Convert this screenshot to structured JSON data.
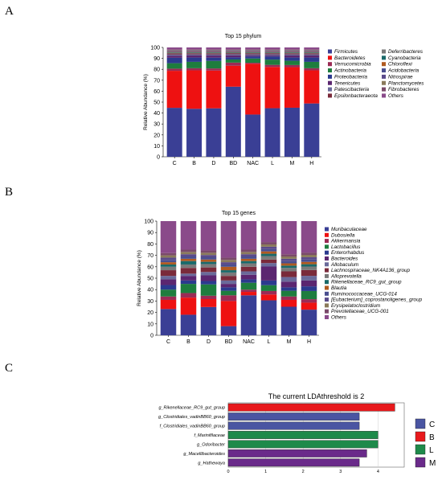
{
  "panels": {
    "a": "A",
    "b": "B",
    "c": "C"
  },
  "chart_data": [
    {
      "type": "bar",
      "stacked": true,
      "title": "Top 15 phylum",
      "ylabel": "Relative Abundance (%)",
      "ylim": [
        0,
        100
      ],
      "yticks": [
        0,
        10,
        20,
        30,
        40,
        50,
        60,
        70,
        80,
        90,
        100
      ],
      "categories": [
        "C",
        "B",
        "D",
        "BD",
        "NAC",
        "L",
        "M",
        "H"
      ],
      "legend_columns": 2,
      "series": [
        {
          "name": "Firmicutes",
          "color": "#3a3f95",
          "values": [
            45,
            45,
            45,
            67,
            40,
            46,
            46,
            50
          ]
        },
        {
          "name": "Bacteroidetes",
          "color": "#ee1111",
          "values": [
            34,
            36,
            35,
            20,
            48,
            39,
            38,
            31
          ]
        },
        {
          "name": "Verrucomicrobia",
          "color": "#9b2b55",
          "values": [
            2,
            2,
            2,
            3,
            1,
            2,
            2,
            2
          ]
        },
        {
          "name": "Actinobacteria",
          "color": "#1e7d3e",
          "values": [
            5,
            6,
            7,
            3,
            4,
            5,
            4,
            6
          ]
        },
        {
          "name": "Proteobacteria",
          "color": "#2b3a8e",
          "values": [
            5,
            4,
            3,
            2,
            2,
            3,
            3,
            4
          ]
        },
        {
          "name": "Tenericutes",
          "color": "#5b2670",
          "values": [
            2,
            2,
            2,
            2,
            1,
            1,
            2,
            2
          ]
        },
        {
          "name": "Patescibacteria",
          "color": "#6a6a9a",
          "values": [
            1,
            1,
            1,
            1,
            1,
            1,
            1,
            1
          ]
        },
        {
          "name": "Epsilonbacteraeota",
          "color": "#7a2a3a",
          "values": [
            1,
            1,
            1,
            1,
            1,
            1,
            1,
            1
          ]
        },
        {
          "name": "Deferribacteres",
          "color": "#7a7a7a",
          "values": [
            0.5,
            0.5,
            0.5,
            0.5,
            0.5,
            0.5,
            0.5,
            0.5
          ]
        },
        {
          "name": "Cyanobacteria",
          "color": "#1a6a6a",
          "values": [
            0.5,
            0.5,
            0.5,
            0.5,
            0.5,
            0.5,
            0.5,
            0.5
          ]
        },
        {
          "name": "Chloroflexi",
          "color": "#b05a20",
          "values": [
            0.5,
            0.5,
            0.5,
            0.5,
            0.5,
            0.5,
            0.5,
            0.5
          ]
        },
        {
          "name": "Acidobacteria",
          "color": "#4a4e8e",
          "values": [
            0.5,
            0.5,
            0.5,
            0.5,
            0.5,
            0.5,
            0.5,
            0.5
          ]
        },
        {
          "name": "Nitrospirae",
          "color": "#5a4a8a",
          "values": [
            0.5,
            0.5,
            0.5,
            0.5,
            0.5,
            0.5,
            0.5,
            0.5
          ]
        },
        {
          "name": "Planctomycetes",
          "color": "#8a7a5a",
          "values": [
            0.5,
            0.5,
            0.5,
            0.5,
            0.5,
            0.5,
            0.5,
            0.5
          ]
        },
        {
          "name": "Fibrobacteres",
          "color": "#7a4a6a",
          "values": [
            0.5,
            0.5,
            0.5,
            0.5,
            0.5,
            0.5,
            0.5,
            0.5
          ]
        },
        {
          "name": "Others",
          "color": "#8a4a8a",
          "values": [
            2,
            2,
            2,
            2,
            2,
            2,
            2,
            2
          ]
        }
      ]
    },
    {
      "type": "bar",
      "stacked": true,
      "title": "Top 15 genes",
      "ylabel": "Relative Abundance (%)",
      "ylim": [
        0,
        100
      ],
      "yticks": [
        0,
        10,
        20,
        30,
        40,
        50,
        60,
        70,
        80,
        90,
        100
      ],
      "categories": [
        "C",
        "B",
        "D",
        "BD",
        "NAC",
        "L",
        "M",
        "H"
      ],
      "legend_columns": 1,
      "series": [
        {
          "name": "Muribaculaceae",
          "color": "#3a3f95",
          "values": [
            23,
            18,
            25,
            8,
            35,
            30,
            25,
            22
          ]
        },
        {
          "name": "Dubosiella",
          "color": "#ee1111",
          "values": [
            8,
            15,
            7,
            22,
            3,
            5,
            6,
            6
          ]
        },
        {
          "name": "Akkermansia",
          "color": "#9b2b55",
          "values": [
            3,
            4,
            3,
            5,
            2,
            3,
            3,
            3
          ]
        },
        {
          "name": "Lactobacillus",
          "color": "#1e7d3e",
          "values": [
            6,
            8,
            10,
            4,
            6,
            5,
            5,
            7
          ]
        },
        {
          "name": "Enterorhabdus",
          "color": "#2b3a8e",
          "values": [
            4,
            3,
            3,
            3,
            3,
            4,
            3,
            4
          ]
        },
        {
          "name": "Bacteroides",
          "color": "#5b2670",
          "values": [
            5,
            4,
            5,
            3,
            4,
            12,
            5,
            5
          ]
        },
        {
          "name": "Allobaculum",
          "color": "#6a6a9a",
          "values": [
            3,
            2,
            3,
            3,
            3,
            3,
            4,
            4
          ]
        },
        {
          "name": "Lachnospiraceae_NK4A136_group",
          "color": "#7a2a3a",
          "values": [
            5,
            5,
            4,
            4,
            4,
            3,
            5,
            5
          ]
        },
        {
          "name": "Alloprevotella",
          "color": "#7a7a7a",
          "values": [
            3,
            3,
            3,
            3,
            3,
            3,
            3,
            3
          ]
        },
        {
          "name": "Rikenellaceae_RC9_gut_group",
          "color": "#1a6a6a",
          "values": [
            2,
            3,
            2,
            2,
            2,
            2,
            2,
            2
          ]
        },
        {
          "name": "Blautia",
          "color": "#b05a20",
          "values": [
            2,
            2,
            2,
            3,
            2,
            2,
            2,
            2
          ]
        },
        {
          "name": "Ruminococcaceae_UCG-014",
          "color": "#4a4e8e",
          "values": [
            2,
            2,
            2,
            2,
            2,
            2,
            2,
            2
          ]
        },
        {
          "name": "[Eubacterium]_coprostanoligenes_group",
          "color": "#5a4a8a",
          "values": [
            2,
            2,
            2,
            2,
            2,
            2,
            2,
            2
          ]
        },
        {
          "name": "Erysipelatoclostridium",
          "color": "#8a7a5a",
          "values": [
            2,
            2,
            2,
            2,
            2,
            2,
            2,
            2
          ]
        },
        {
          "name": "Prevotellaceae_UCG-001",
          "color": "#7a4a6a",
          "values": [
            2,
            2,
            2,
            2,
            2,
            2,
            2,
            2
          ]
        },
        {
          "name": "Others",
          "color": "#8a4a8a",
          "values": [
            28,
            25,
            26,
            32,
            25,
            18,
            29,
            27
          ]
        }
      ]
    },
    {
      "type": "bar",
      "orientation": "horizontal",
      "title": "The current LDAthreshold is 2",
      "xlim": [
        0,
        4.7
      ],
      "xticks": [
        0,
        1,
        2,
        3,
        4
      ],
      "grid": true,
      "categories": [
        "g_Rikenellaceae_RC9_gut_group",
        "g_Clostridiales_vadinBB60_group",
        "f_Clostridiales_vadinBB60_group",
        "f_Marinifilaceae",
        "g_Odoribacter",
        "g_Macellibacteroides",
        "g_Hathewaya"
      ],
      "values": [
        4.45,
        3.5,
        3.5,
        4.0,
        4.0,
        3.7,
        3.5
      ],
      "groups": [
        "B",
        "C",
        "C",
        "L",
        "L",
        "M",
        "M"
      ],
      "legend": [
        {
          "name": "C",
          "color": "#4a55a2"
        },
        {
          "name": "B",
          "color": "#e8191c"
        },
        {
          "name": "L",
          "color": "#1e8a4a"
        },
        {
          "name": "M",
          "color": "#6a2a8a"
        }
      ]
    }
  ]
}
